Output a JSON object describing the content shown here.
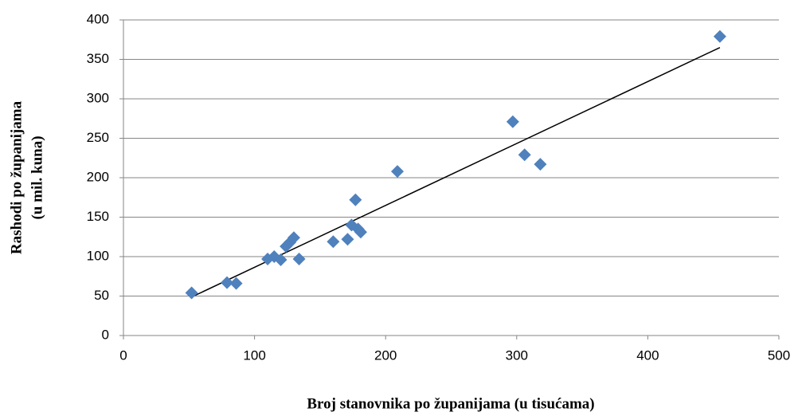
{
  "chart_data": {
    "type": "scatter",
    "x_label": "Broj stanovnika po županijama (u tisućama)",
    "y_label": [
      "Rashodi po županijama",
      "(u mil. kuna)"
    ],
    "series": [
      {
        "color": "#4f81bd",
        "x": [
          52,
          79,
          86,
          110,
          115,
          120,
          124,
          127,
          130,
          134,
          160,
          171,
          174,
          177,
          179,
          181,
          209,
          297,
          306,
          318,
          455
        ],
        "values": [
          54,
          67,
          66,
          97,
          100,
          96,
          113,
          118,
          124,
          97,
          119,
          122,
          140,
          172,
          135,
          131,
          208,
          271,
          229,
          217,
          379
        ]
      }
    ],
    "trendline": {
      "color": "#000000",
      "x": [
        51,
        455
      ],
      "values": [
        48,
        365
      ]
    },
    "xlim": [
      0,
      500
    ],
    "xticks": [
      0,
      100,
      200,
      300,
      400,
      500
    ],
    "ylim": [
      0,
      400
    ],
    "yticks": [
      0,
      50,
      100,
      150,
      200,
      250,
      300,
      350,
      400
    ],
    "grid": true
  }
}
